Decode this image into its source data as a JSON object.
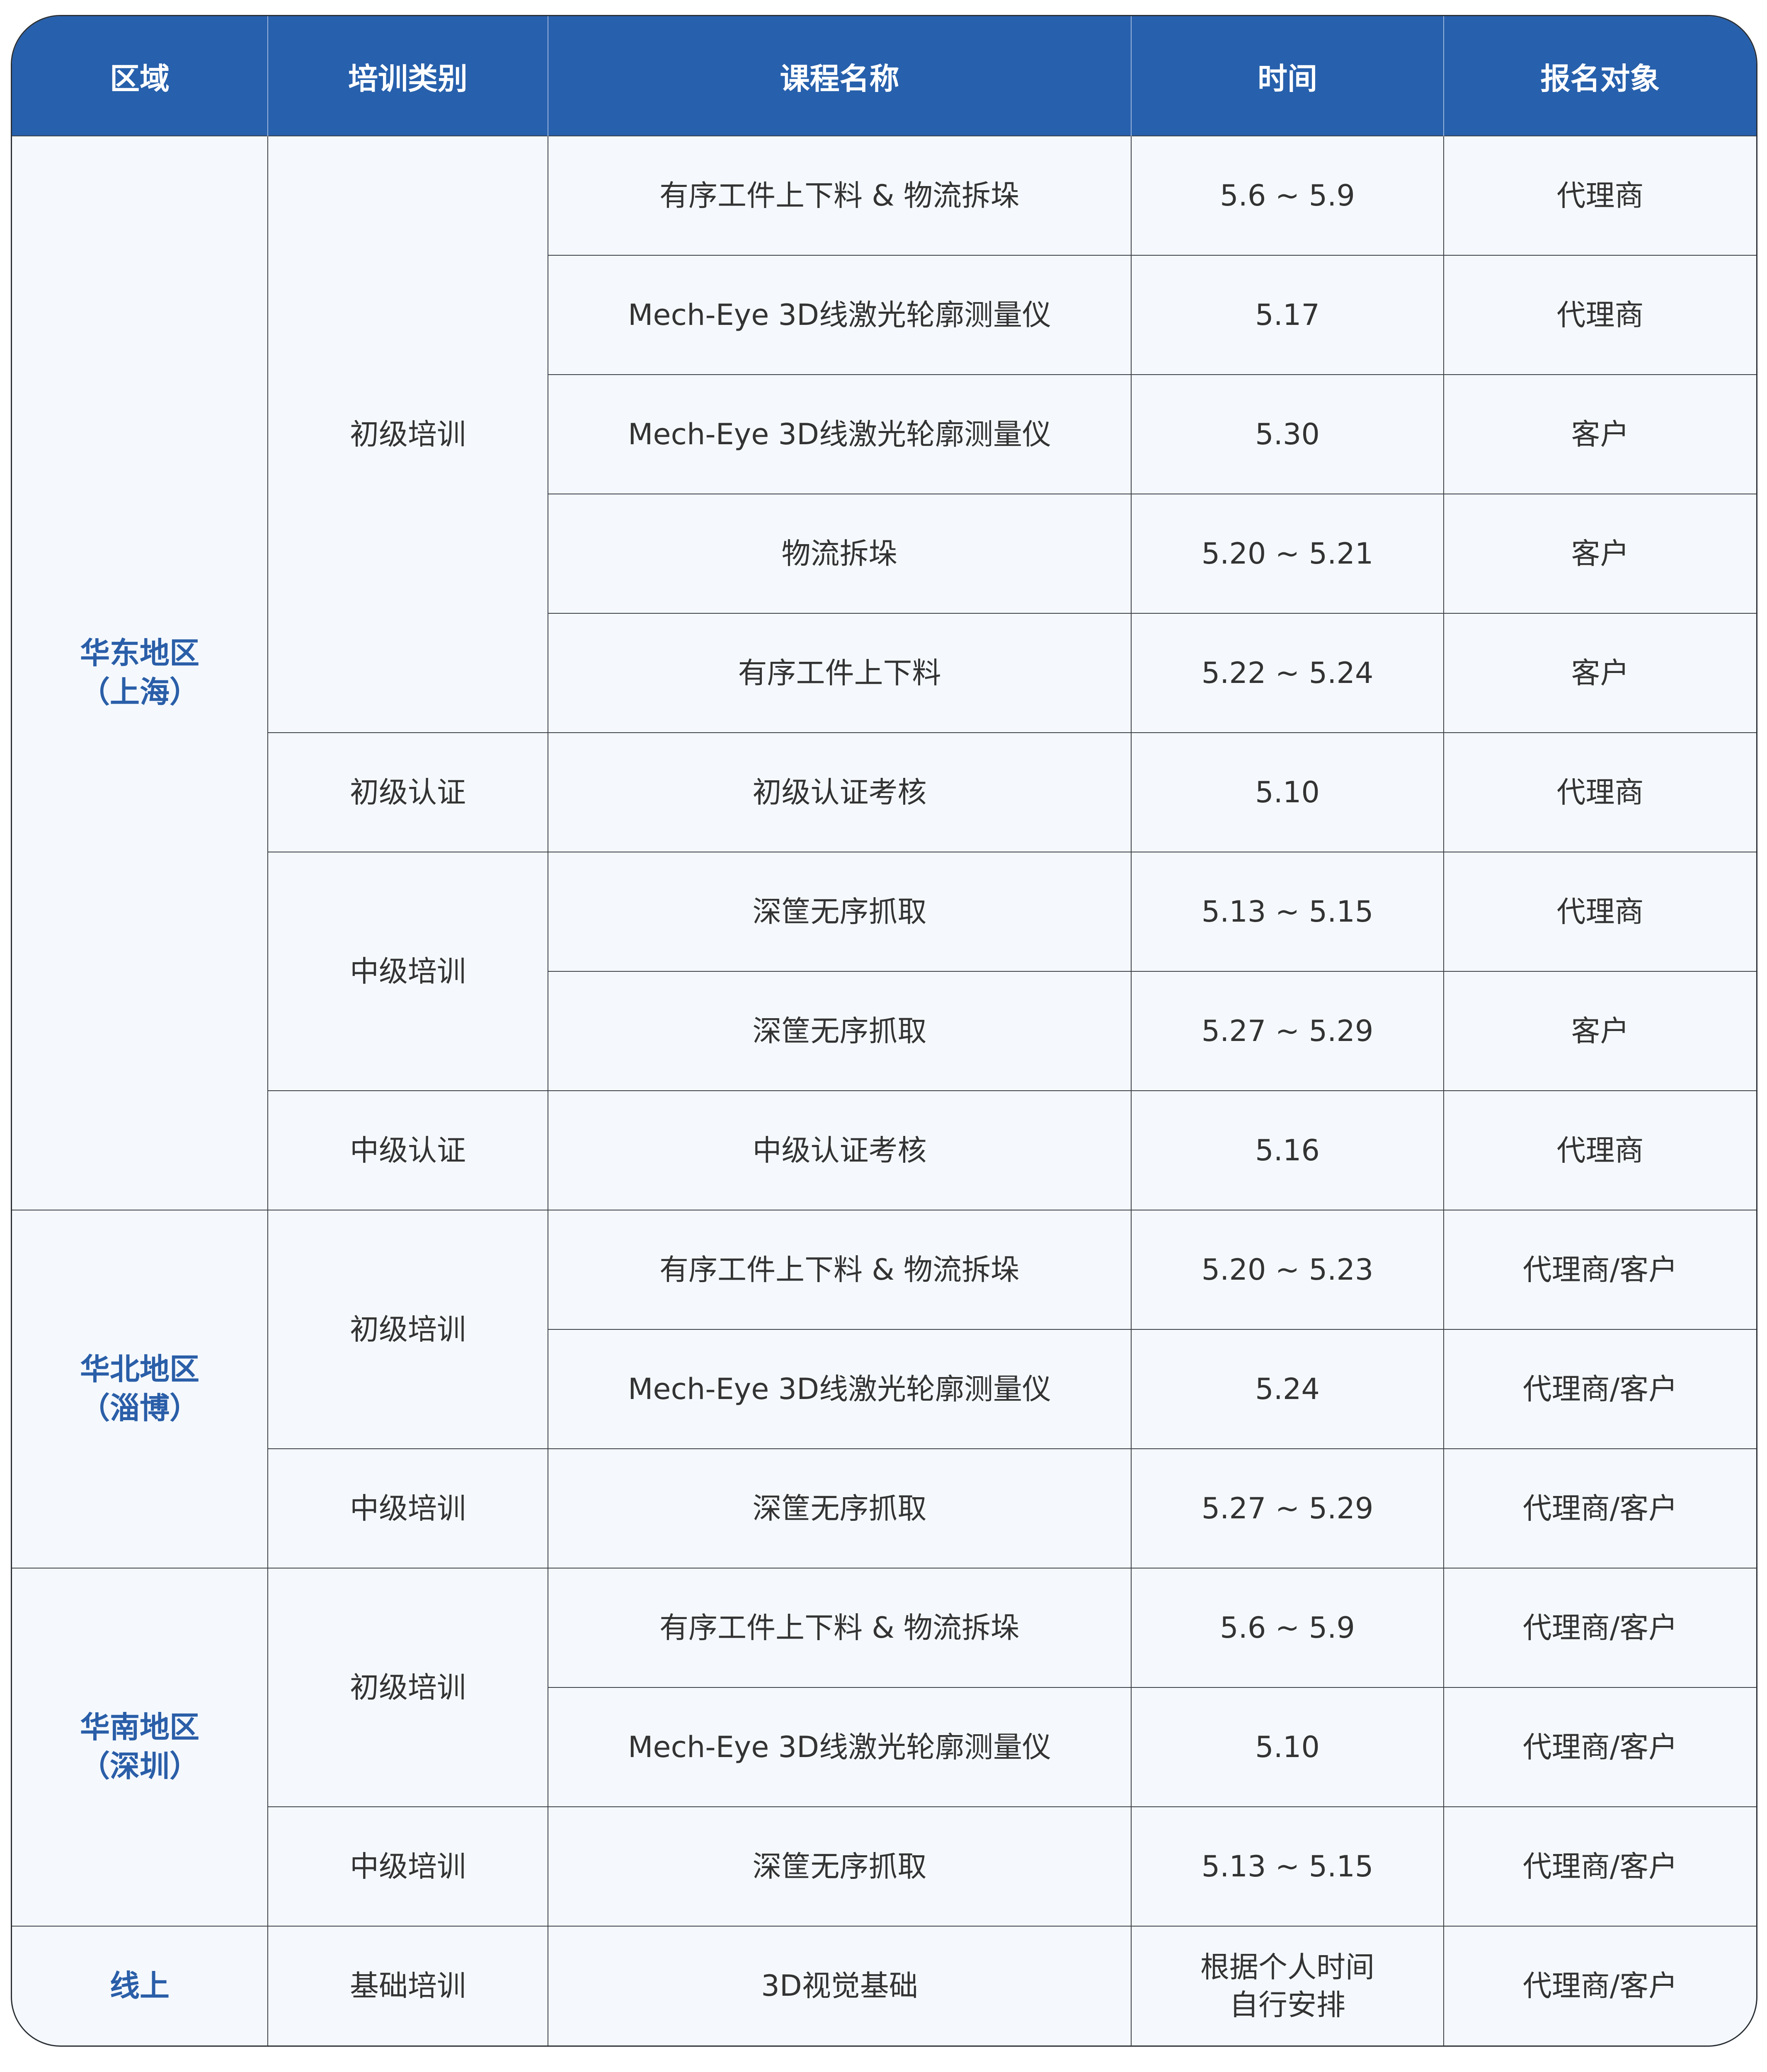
{
  "colors": {
    "header_bg": "#2760ac",
    "body_bg": "#f5f9fd",
    "region_text": "#2a5ea8"
  },
  "headers": [
    "区域",
    "培训类别",
    "课程名称",
    "时间",
    "报名对象"
  ],
  "regions": [
    {
      "name": "华东地区\n（上海）",
      "categories": [
        {
          "name": "初级培训",
          "courses": [
            {
              "course": "有序工件上下料 & 物流拆垛",
              "time": "5.6 ~ 5.9",
              "target": "代理商"
            },
            {
              "course": "Mech-Eye 3D线激光轮廓测量仪",
              "time": "5.17",
              "target": "代理商"
            },
            {
              "course": "Mech-Eye 3D线激光轮廓测量仪",
              "time": "5.30",
              "target": "客户"
            },
            {
              "course": "物流拆垛",
              "time": "5.20 ~ 5.21",
              "target": "客户"
            },
            {
              "course": "有序工件上下料",
              "time": "5.22 ~ 5.24",
              "target": "客户"
            }
          ]
        },
        {
          "name": "初级认证",
          "courses": [
            {
              "course": "初级认证考核",
              "time": "5.10",
              "target": "代理商"
            }
          ]
        },
        {
          "name": "中级培训",
          "courses": [
            {
              "course": "深筐无序抓取",
              "time": "5.13 ~ 5.15",
              "target": "代理商"
            },
            {
              "course": "深筐无序抓取",
              "time": "5.27 ~ 5.29",
              "target": "客户"
            }
          ]
        },
        {
          "name": "中级认证",
          "courses": [
            {
              "course": "中级认证考核",
              "time": "5.16",
              "target": "代理商"
            }
          ]
        }
      ]
    },
    {
      "name": "华北地区\n（淄博）",
      "categories": [
        {
          "name": "初级培训",
          "courses": [
            {
              "course": "有序工件上下料 & 物流拆垛",
              "time": "5.20 ~ 5.23",
              "target": "代理商/客户"
            },
            {
              "course": "Mech-Eye 3D线激光轮廓测量仪",
              "time": "5.24",
              "target": "代理商/客户"
            }
          ]
        },
        {
          "name": "中级培训",
          "courses": [
            {
              "course": "深筐无序抓取",
              "time": "5.27 ~ 5.29",
              "target": "代理商/客户"
            }
          ]
        }
      ]
    },
    {
      "name": "华南地区\n（深圳）",
      "categories": [
        {
          "name": "初级培训",
          "courses": [
            {
              "course": "有序工件上下料 & 物流拆垛",
              "time": "5.6 ~ 5.9",
              "target": "代理商/客户"
            },
            {
              "course": "Mech-Eye 3D线激光轮廓测量仪",
              "time": "5.10",
              "target": "代理商/客户"
            }
          ]
        },
        {
          "name": "中级培训",
          "courses": [
            {
              "course": "深筐无序抓取",
              "time": "5.13 ~ 5.15",
              "target": "代理商/客户"
            }
          ]
        }
      ]
    },
    {
      "name": "线上",
      "categories": [
        {
          "name": "基础培训",
          "courses": [
            {
              "course": "3D视觉基础",
              "time": "根据个人时间\n自行安排",
              "target": "代理商/客户"
            }
          ]
        }
      ]
    }
  ]
}
